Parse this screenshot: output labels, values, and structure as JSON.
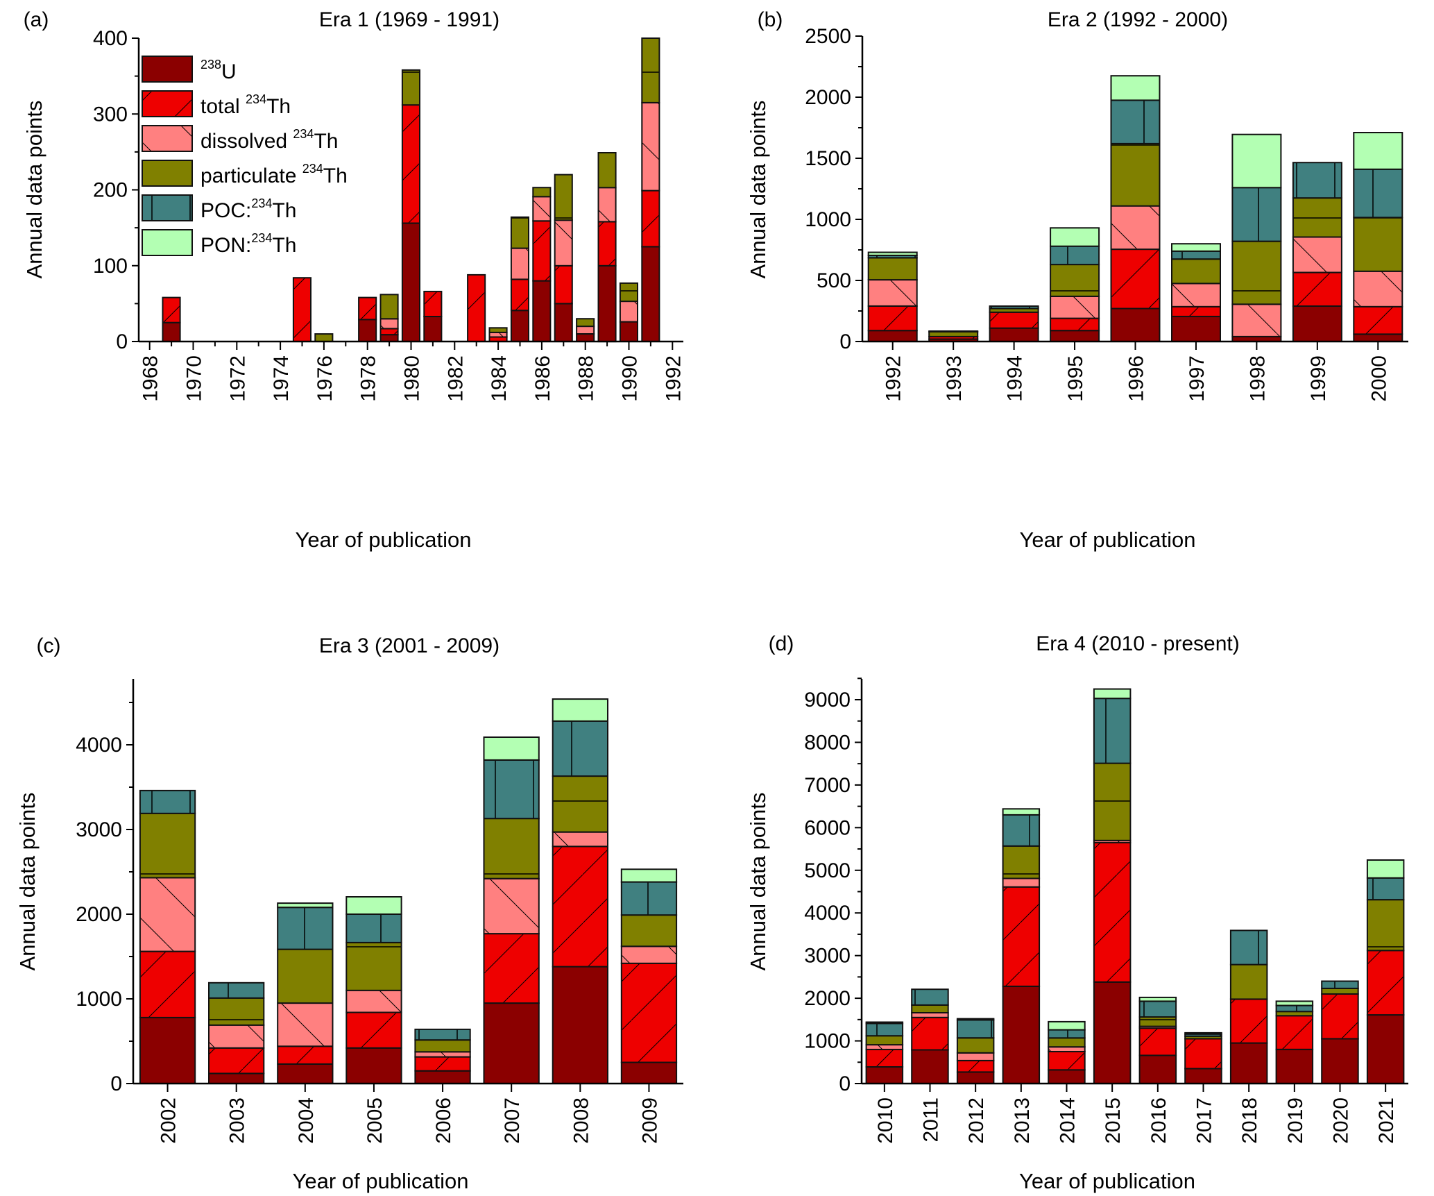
{
  "chart_data": [
    {
      "type": "bar",
      "stacked": true,
      "panel": "(a)",
      "title": "Era 1 (1969 - 1991)",
      "xlabel": "Year of publication",
      "ylabel": "Annual data points",
      "ylim": [
        0,
        400
      ],
      "yticks": [
        0,
        100,
        200,
        300,
        400
      ],
      "xlim": [
        1967.5,
        1992.5
      ],
      "xticks": [
        1968,
        1970,
        1972,
        1974,
        1976,
        1978,
        1980,
        1982,
        1984,
        1986,
        1988,
        1990,
        1992
      ],
      "numeric_x": true,
      "legend": "top-left",
      "categories": [
        1969,
        1975,
        1976,
        1978,
        1979,
        1980,
        1981,
        1983,
        1984,
        1985,
        1986,
        1987,
        1988,
        1989,
        1990,
        1991
      ],
      "series": [
        {
          "name": "238U",
          "values": [
            25,
            0,
            0,
            29,
            9,
            156,
            33,
            0,
            0,
            41,
            80,
            50,
            10,
            100,
            26,
            125
          ]
        },
        {
          "name": "total 234Th",
          "values": [
            33,
            84,
            0,
            29,
            8,
            156,
            33,
            88,
            6,
            41,
            79,
            50,
            0,
            58,
            0,
            74
          ]
        },
        {
          "name": "dissolved 234Th",
          "values": [
            0,
            0,
            0,
            0,
            13,
            0,
            0,
            0,
            6,
            41,
            32,
            60,
            10,
            45,
            27,
            116
          ]
        },
        {
          "name": "particulate 234Th",
          "values": [
            0,
            0,
            10,
            0,
            32,
            46,
            0,
            0,
            6,
            41,
            12,
            60,
            10,
            46,
            24,
            85
          ]
        },
        {
          "name": "POC:234Th",
          "values": [
            0,
            0,
            0,
            0,
            0,
            0,
            0,
            0,
            0,
            0,
            0,
            0,
            0,
            0,
            0,
            0
          ]
        },
        {
          "name": "PON:234Th",
          "values": [
            0,
            0,
            0,
            0,
            0,
            0,
            0,
            0,
            0,
            0,
            0,
            0,
            0,
            0,
            0,
            0
          ]
        }
      ]
    },
    {
      "type": "bar",
      "stacked": true,
      "panel": "(b)",
      "title": "Era 2 (1992 - 2000)",
      "xlabel": "Year of publication",
      "ylabel": "Annual data points",
      "ylim": [
        0,
        2500
      ],
      "yticks": [
        0,
        500,
        1000,
        1500,
        2000,
        2500
      ],
      "numeric_x": false,
      "categories": [
        "1992",
        "1993",
        "1994",
        "1995",
        "1996",
        "1997",
        "1998",
        "1999",
        "2000"
      ],
      "series": [
        {
          "name": "238U",
          "values": [
            90,
            20,
            110,
            90,
            270,
            205,
            40,
            290,
            60
          ]
        },
        {
          "name": "total 234Th",
          "values": [
            200,
            20,
            130,
            100,
            485,
            80,
            0,
            275,
            225
          ]
        },
        {
          "name": "dissolved 234Th",
          "values": [
            215,
            0,
            0,
            180,
            355,
            190,
            265,
            290,
            290
          ]
        },
        {
          "name": "particulate 234Th",
          "values": [
            180,
            40,
            30,
            260,
            510,
            200,
            515,
            320,
            440
          ]
        },
        {
          "name": "POC:234Th",
          "values": [
            20,
            0,
            20,
            150,
            355,
            65,
            440,
            290,
            395
          ]
        },
        {
          "name": "PON:234Th",
          "values": [
            25,
            5,
            0,
            150,
            200,
            60,
            435,
            0,
            300
          ]
        }
      ]
    },
    {
      "type": "bar",
      "stacked": true,
      "panel": "(c)",
      "title": "Era 3 (2001 - 2009)",
      "xlabel": "Year of publication",
      "ylabel": "Annual data points",
      "ylim": [
        0,
        4800
      ],
      "yticks": [
        0,
        1000,
        2000,
        3000,
        4000
      ],
      "numeric_x": false,
      "categories": [
        "2002",
        "2003",
        "2004",
        "2005",
        "2006",
        "2007",
        "2008",
        "2009"
      ],
      "series": [
        {
          "name": "238U",
          "values": [
            780,
            120,
            230,
            420,
            150,
            950,
            1380,
            250
          ]
        },
        {
          "name": "total 234Th",
          "values": [
            780,
            300,
            210,
            420,
            165,
            820,
            1420,
            1170
          ]
        },
        {
          "name": "dissolved 234Th",
          "values": [
            870,
            270,
            510,
            260,
            60,
            650,
            170,
            200
          ]
        },
        {
          "name": "particulate 234Th",
          "values": [
            760,
            320,
            635,
            565,
            140,
            710,
            660,
            370
          ]
        },
        {
          "name": "POC:234Th",
          "values": [
            270,
            180,
            495,
            335,
            125,
            690,
            650,
            390
          ]
        },
        {
          "name": "PON:234Th",
          "values": [
            0,
            0,
            50,
            205,
            0,
            270,
            260,
            150
          ]
        }
      ]
    },
    {
      "type": "bar",
      "stacked": true,
      "panel": "(d)",
      "title": "Era 4 (2010 - present)",
      "xlabel": "Year of publication",
      "ylabel": "Annual data points",
      "ylim": [
        0,
        9500
      ],
      "yticks": [
        0,
        1000,
        2000,
        3000,
        4000,
        5000,
        6000,
        7000,
        8000,
        9000
      ],
      "numeric_x": false,
      "categories": [
        "2010",
        "2011",
        "2012",
        "2013",
        "2014",
        "2015",
        "2016",
        "2017",
        "2018",
        "2019",
        "2020",
        "2021"
      ],
      "series": [
        {
          "name": "238U",
          "values": [
            390,
            790,
            270,
            2280,
            320,
            2380,
            660,
            350,
            950,
            800,
            1050,
            1610
          ]
        },
        {
          "name": "total 234Th",
          "values": [
            410,
            760,
            270,
            2330,
            430,
            3270,
            640,
            700,
            1030,
            790,
            1050,
            1510
          ]
        },
        {
          "name": "dissolved 234Th",
          "values": [
            110,
            110,
            180,
            200,
            110,
            50,
            40,
            0,
            0,
            0,
            0,
            0
          ]
        },
        {
          "name": "particulate 234Th",
          "values": [
            210,
            180,
            350,
            760,
            210,
            1810,
            220,
            60,
            810,
            100,
            130,
            1190
          ]
        },
        {
          "name": "POC:234Th",
          "values": [
            290,
            370,
            420,
            730,
            190,
            1520,
            370,
            50,
            800,
            140,
            170,
            510
          ]
        },
        {
          "name": "PON:234Th",
          "values": [
            30,
            0,
            30,
            140,
            190,
            220,
            90,
            30,
            0,
            100,
            0,
            420
          ]
        }
      ]
    }
  ],
  "legend": {
    "items": [
      {
        "sup": "238",
        "base": "U",
        "prefix": "",
        "color": "#8b0000",
        "pattern": "none"
      },
      {
        "sup": "234",
        "base": "Th",
        "prefix": "total ",
        "color": "#ee0000",
        "pattern": "forward-diagonal"
      },
      {
        "sup": "234",
        "base": "Th",
        "prefix": "dissolved ",
        "color": "#ff8080",
        "pattern": "back-diagonal"
      },
      {
        "sup": "234",
        "base": "Th",
        "prefix": "particulate ",
        "color": "#808000",
        "pattern": "horizontal"
      },
      {
        "sup": "234",
        "base": "Th",
        "prefix": "POC:",
        "color": "#408080",
        "pattern": "vertical"
      },
      {
        "sup": "234",
        "base": "Th",
        "prefix": "PON:",
        "color": "#b3ffb3",
        "pattern": "none"
      }
    ]
  }
}
